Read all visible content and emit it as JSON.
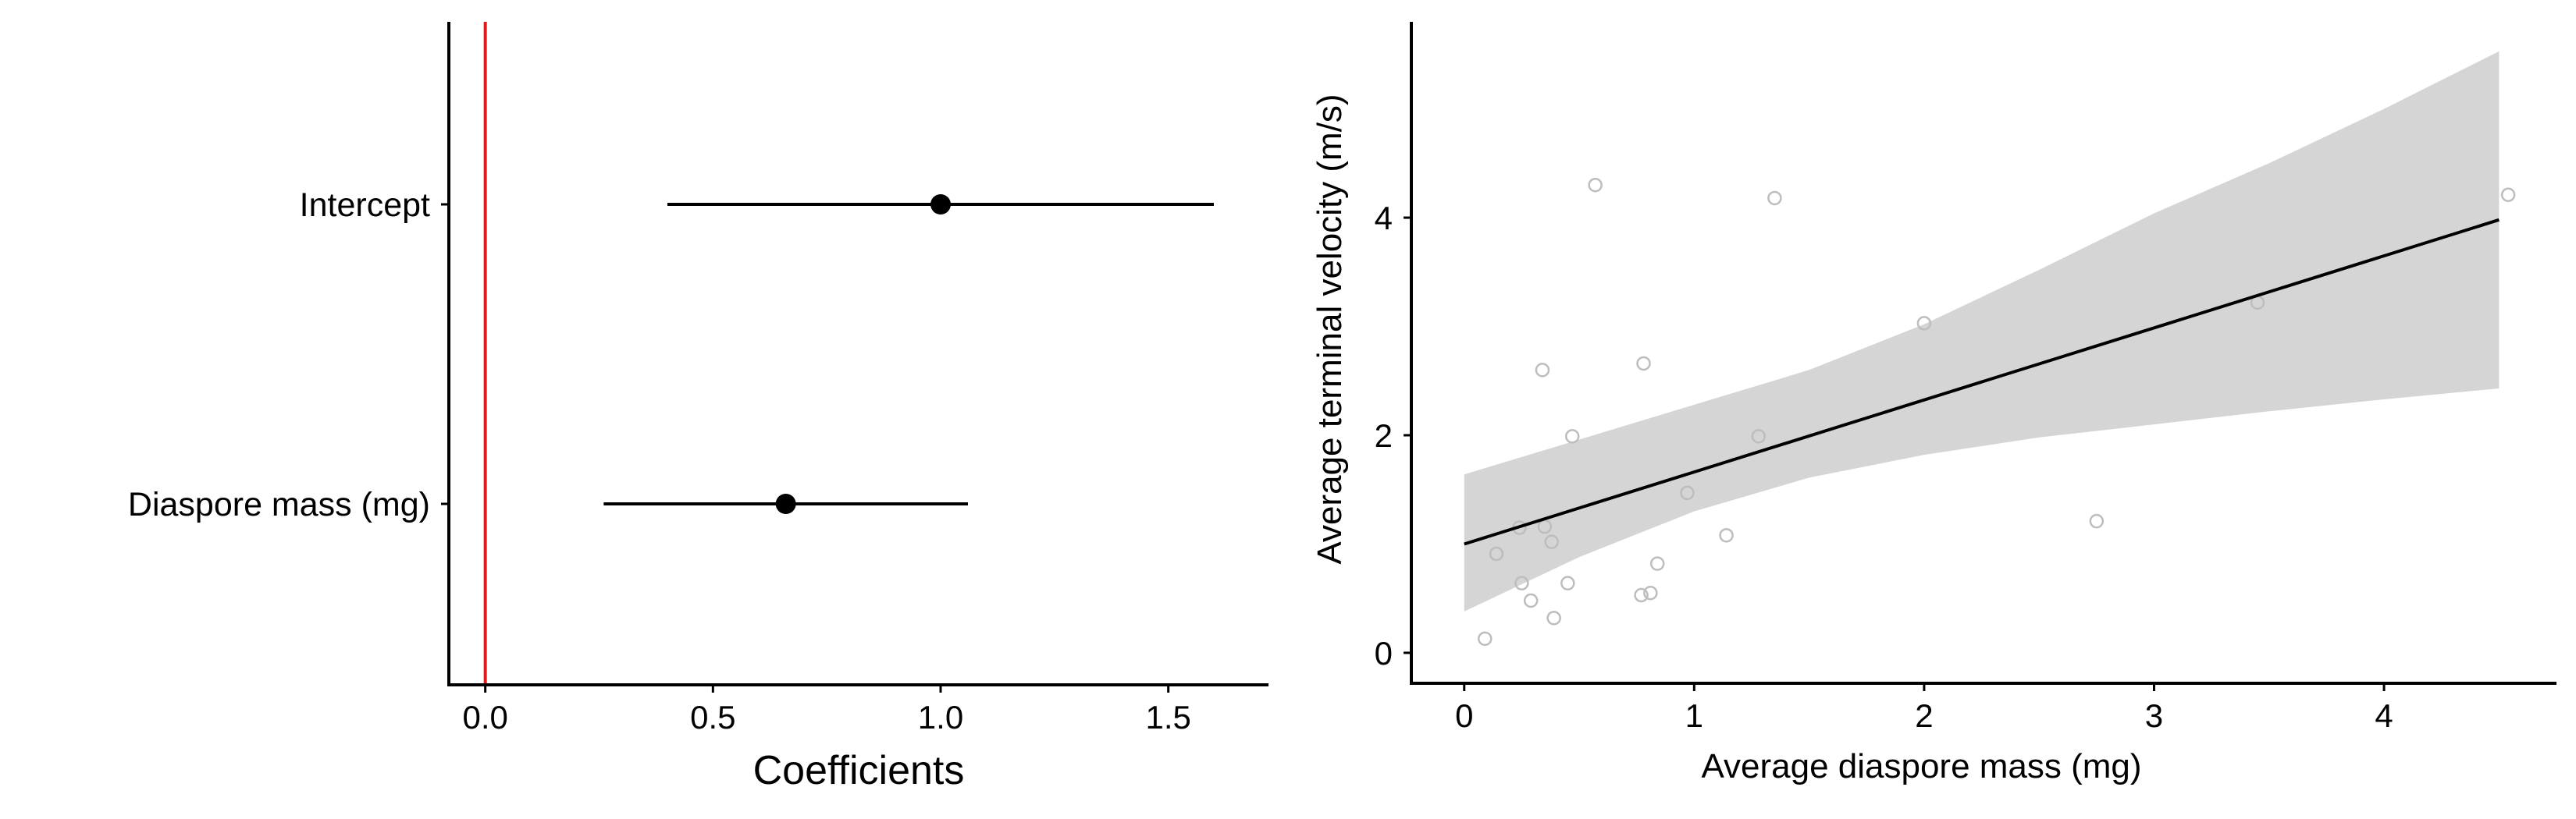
{
  "chart_data": [
    {
      "type": "coefficient_plot",
      "xlabel": "Coefficients",
      "xticks": [
        0.0,
        0.5,
        1.0,
        1.5
      ],
      "xtick_labels": [
        "0.0",
        "0.5",
        "1.0",
        "1.5"
      ],
      "xlim": [
        -0.08,
        1.72
      ],
      "reference_line": {
        "x": 0,
        "color": "#e31a1c"
      },
      "terms": [
        {
          "label": "Intercept",
          "estimate": 1.0,
          "lower": 0.4,
          "upper": 1.6
        },
        {
          "label": "Diaspore mass (mg)",
          "estimate": 0.66,
          "lower": 0.26,
          "upper": 1.06
        }
      ]
    },
    {
      "type": "scatter",
      "xlabel": "Average diaspore mass (mg)",
      "ylabel": "Average terminal velocity (m/s)",
      "xticks": [
        0,
        1,
        2,
        3,
        4
      ],
      "xtick_labels": [
        "0",
        "1",
        "2",
        "3",
        "4"
      ],
      "yticks": [
        0,
        2,
        4
      ],
      "ytick_labels": [
        "0",
        "2",
        "4"
      ],
      "xlim": [
        -0.23,
        4.75
      ],
      "ylim": [
        -0.28,
        5.8
      ],
      "points": [
        {
          "x": 0.09,
          "y": 0.13
        },
        {
          "x": 0.14,
          "y": 0.91
        },
        {
          "x": 0.24,
          "y": 1.15
        },
        {
          "x": 0.25,
          "y": 0.64
        },
        {
          "x": 0.29,
          "y": 0.48
        },
        {
          "x": 0.34,
          "y": 2.6
        },
        {
          "x": 0.35,
          "y": 1.16
        },
        {
          "x": 0.38,
          "y": 1.02
        },
        {
          "x": 0.39,
          "y": 0.32
        },
        {
          "x": 0.45,
          "y": 0.64
        },
        {
          "x": 0.47,
          "y": 1.99
        },
        {
          "x": 0.57,
          "y": 4.3
        },
        {
          "x": 0.77,
          "y": 0.53
        },
        {
          "x": 0.78,
          "y": 2.66
        },
        {
          "x": 0.81,
          "y": 0.55
        },
        {
          "x": 0.84,
          "y": 0.82
        },
        {
          "x": 0.97,
          "y": 1.47
        },
        {
          "x": 1.14,
          "y": 1.08
        },
        {
          "x": 1.28,
          "y": 1.99
        },
        {
          "x": 1.35,
          "y": 4.18
        },
        {
          "x": 2.0,
          "y": 3.03
        },
        {
          "x": 2.75,
          "y": 1.21
        },
        {
          "x": 3.45,
          "y": 3.22
        },
        {
          "x": 4.54,
          "y": 4.21
        }
      ],
      "fit_line": {
        "x": [
          0,
          4.5
        ],
        "y": [
          1.0,
          3.98
        ]
      },
      "confidence_band": {
        "x": [
          0,
          0.5,
          1.0,
          1.5,
          2.0,
          2.5,
          3.0,
          3.5,
          4.0,
          4.5
        ],
        "lower": [
          0.38,
          0.88,
          1.3,
          1.61,
          1.82,
          1.98,
          2.1,
          2.22,
          2.33,
          2.43
        ],
        "upper": [
          1.64,
          1.96,
          2.28,
          2.6,
          3.02,
          3.52,
          4.04,
          4.5,
          5.0,
          5.53
        ]
      },
      "point_color": "#bdbdbd",
      "band_color": "#d5d5d5",
      "line_color": "#000000"
    }
  ]
}
